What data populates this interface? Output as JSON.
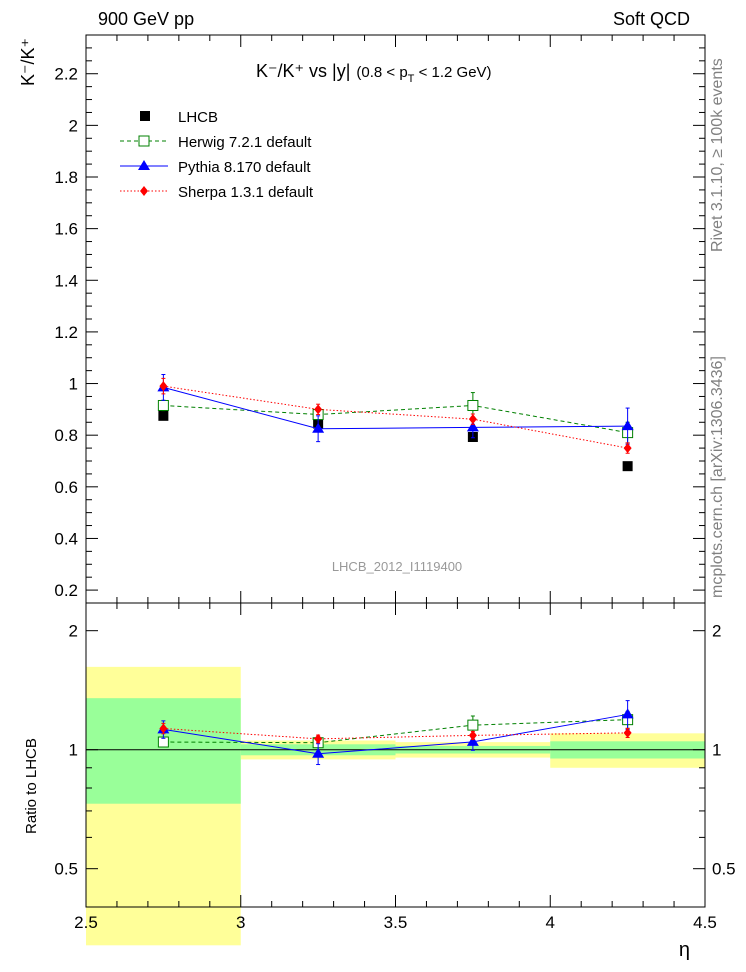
{
  "header": {
    "left": "900 GeV pp",
    "right": "Soft QCD"
  },
  "side_labels": {
    "rivet": "Rivet 3.1.10, ≥ 100k events",
    "mcplots": "mcplots.cern.ch [arXiv:1306.3436]"
  },
  "chart_data": {
    "type": "line",
    "title_main": "K⁻/K⁺ vs |y|",
    "title_range": "(0.8 < p",
    "title_sub": "T",
    "title_range_end": " < 1.2 GeV)",
    "ylabel": "K⁻/K⁺",
    "xlabel": "η",
    "ratio_ylabel": "Ratio to LHCB",
    "analysis_id": "LHCB_2012_I1119400",
    "xlim": [
      2.5,
      4.5
    ],
    "ylim": [
      0.15,
      2.35
    ],
    "ratio_ylim": [
      0.4,
      2.35
    ],
    "x_ticks": [
      "2.5",
      "3",
      "3.5",
      "4",
      "4.5"
    ],
    "y_ticks": [
      "0.2",
      "0.4",
      "0.6",
      "0.8",
      "1",
      "1.2",
      "1.4",
      "1.6",
      "1.8",
      "2",
      "2.2"
    ],
    "ratio_y_ticks": [
      "0.5",
      "1",
      "2"
    ],
    "x": [
      2.75,
      3.25,
      3.75,
      4.25
    ],
    "bin_edges": [
      2.5,
      3.0,
      3.5,
      4.0,
      4.5
    ],
    "data": {
      "name": "LHCB",
      "values": [
        0.875,
        0.845,
        0.793,
        0.68
      ],
      "band_inner": [
        [
          0.73,
          1.35
        ],
        [
          0.968,
          1.032
        ],
        [
          0.978,
          1.022
        ],
        [
          0.95,
          1.05
        ]
      ],
      "band_outer": [
        [
          0.32,
          1.62
        ],
        [
          0.945,
          1.055
        ],
        [
          0.955,
          1.045
        ],
        [
          0.9,
          1.1
        ]
      ]
    },
    "series": [
      {
        "name": "Herwig 7.2.1 default",
        "color": "#008000",
        "dash": "4,3",
        "marker": "open-square",
        "values": [
          0.915,
          0.88,
          0.915,
          0.81
        ],
        "errors": [
          0.02,
          0.02,
          0.05,
          0.04
        ]
      },
      {
        "name": "Pythia 8.170 default",
        "color": "#0000ff",
        "dash": "",
        "marker": "triangle",
        "values": [
          0.985,
          0.825,
          0.83,
          0.835
        ],
        "errors": [
          0.05,
          0.05,
          0.04,
          0.07
        ]
      },
      {
        "name": "Sherpa 1.3.1 default",
        "color": "#ff0000",
        "dash": "1.5,2",
        "marker": "diamond",
        "values": [
          0.99,
          0.9,
          0.862,
          0.75
        ],
        "errors": [
          0.03,
          0.02,
          0.02,
          0.02
        ]
      }
    ]
  }
}
